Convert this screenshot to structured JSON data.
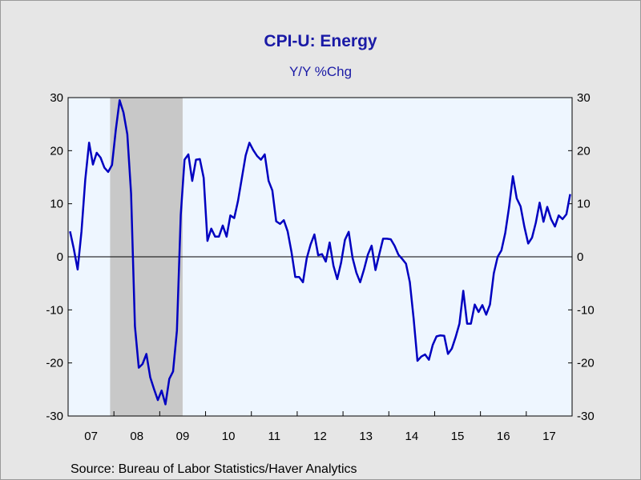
{
  "chart_data": {
    "type": "line",
    "title": "CPI-U: Energy",
    "subtitle": "Y/Y %Chg",
    "xlabel": "",
    "ylabel": "",
    "ylim": [
      -30,
      30
    ],
    "y_ticks": [
      30,
      20,
      10,
      0,
      -10,
      -20,
      -30
    ],
    "x_tick_labels": [
      "07",
      "08",
      "09",
      "10",
      "11",
      "12",
      "13",
      "14",
      "15",
      "16",
      "17"
    ],
    "x_range": [
      "2007-01",
      "2017-12"
    ],
    "recession_shading": {
      "start": "2007-12",
      "end": "2009-06",
      "color": "#c8c8c8"
    },
    "grid": false,
    "zero_line": true,
    "plot_background": "#eef6ff",
    "series": [
      {
        "color": "#0000c0",
        "x": [
          "2007-01",
          "2007-02",
          "2007-03",
          "2007-04",
          "2007-05",
          "2007-06",
          "2007-07",
          "2007-08",
          "2007-09",
          "2007-10",
          "2007-11",
          "2007-12",
          "2008-01",
          "2008-02",
          "2008-03",
          "2008-04",
          "2008-05",
          "2008-06",
          "2008-07",
          "2008-08",
          "2008-09",
          "2008-10",
          "2008-11",
          "2008-12",
          "2009-01",
          "2009-02",
          "2009-03",
          "2009-04",
          "2009-05",
          "2009-06",
          "2009-07",
          "2009-08",
          "2009-09",
          "2009-10",
          "2009-11",
          "2009-12",
          "2010-01",
          "2010-02",
          "2010-03",
          "2010-04",
          "2010-05",
          "2010-06",
          "2010-07",
          "2010-08",
          "2010-09",
          "2010-10",
          "2010-11",
          "2010-12",
          "2011-01",
          "2011-02",
          "2011-03",
          "2011-04",
          "2011-05",
          "2011-06",
          "2011-07",
          "2011-08",
          "2011-09",
          "2011-10",
          "2011-11",
          "2011-12",
          "2012-01",
          "2012-02",
          "2012-03",
          "2012-04",
          "2012-05",
          "2012-06",
          "2012-07",
          "2012-08",
          "2012-09",
          "2012-10",
          "2012-11",
          "2012-12",
          "2013-01",
          "2013-02",
          "2013-03",
          "2013-04",
          "2013-05",
          "2013-06",
          "2013-07",
          "2013-08",
          "2013-09",
          "2013-10",
          "2013-11",
          "2013-12",
          "2014-01",
          "2014-02",
          "2014-03",
          "2014-04",
          "2014-05",
          "2014-06",
          "2014-07",
          "2014-08",
          "2014-09",
          "2014-10",
          "2014-11",
          "2014-12",
          "2015-01",
          "2015-02",
          "2015-03",
          "2015-04",
          "2015-05",
          "2015-06",
          "2015-07",
          "2015-08",
          "2015-09",
          "2015-10",
          "2015-11",
          "2015-12",
          "2016-01",
          "2016-02",
          "2016-03",
          "2016-04",
          "2016-05",
          "2016-06",
          "2016-07",
          "2016-08",
          "2016-09",
          "2016-10",
          "2016-11",
          "2016-12",
          "2017-01",
          "2017-02",
          "2017-03",
          "2017-04",
          "2017-05",
          "2017-06",
          "2017-07",
          "2017-08",
          "2017-09",
          "2017-10",
          "2017-11",
          "2017-12"
        ],
        "values": [
          4.8,
          1.5,
          -2.4,
          4.8,
          14.5,
          21.5,
          17.4,
          19.6,
          18.7,
          16.8,
          16.0,
          17.3,
          24.0,
          29.5,
          27.2,
          23.1,
          11.9,
          -13.1,
          -20.9,
          -20.2,
          -18.3,
          -22.7,
          -24.9,
          -27.0,
          -25.2,
          -27.8,
          -23.0,
          -21.6,
          -13.9,
          7.9,
          18.3,
          19.3,
          14.3,
          18.3,
          18.4,
          14.9,
          3.0,
          5.3,
          3.8,
          3.8,
          5.9,
          3.8,
          7.8,
          7.3,
          10.5,
          14.8,
          19.1,
          21.5,
          20.1,
          19.0,
          18.3,
          19.3,
          14.3,
          12.5,
          6.7,
          6.2,
          6.9,
          4.8,
          0.9,
          -3.8,
          -3.8,
          -4.8,
          -0.3,
          2.3,
          4.2,
          0.3,
          0.5,
          -0.9,
          2.7,
          -1.7,
          -4.2,
          -1.1,
          3.2,
          4.7,
          -0.2,
          -3.0,
          -4.8,
          -2.4,
          0.4,
          2.1,
          -2.5,
          0.5,
          3.4,
          3.4,
          3.3,
          2.1,
          0.4,
          -0.4,
          -1.3,
          -4.8,
          -11.6,
          -19.6,
          -18.8,
          -18.4,
          -19.4,
          -16.6,
          -15.0,
          -14.8,
          -14.9,
          -18.3,
          -17.3,
          -15.1,
          -12.6,
          -6.4,
          -12.6,
          -12.6,
          -9.0,
          -10.4,
          -9.1,
          -10.9,
          -9.0,
          -3.1,
          0.0,
          1.2,
          4.5,
          9.4,
          15.2,
          11.0,
          9.5,
          5.7,
          2.5,
          3.6,
          6.4,
          10.2,
          6.6,
          9.4,
          7.1,
          5.7,
          7.8,
          7.1,
          8.0,
          11.8
        ]
      }
    ]
  },
  "source": "Source:  Bureau of Labor Statistics/Haver Analytics"
}
